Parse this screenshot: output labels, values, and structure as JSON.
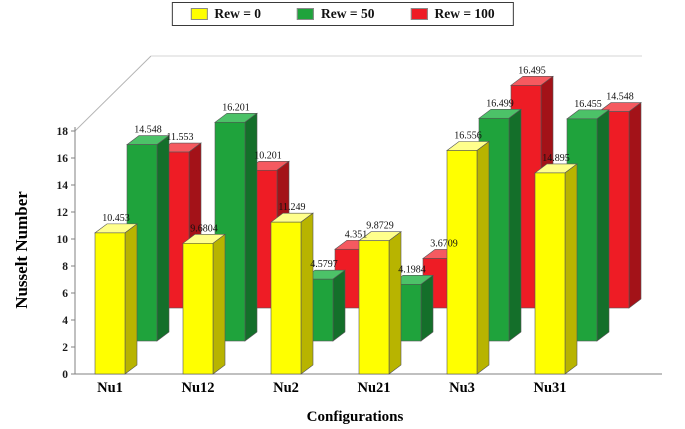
{
  "figure": {
    "ylabel": "Nusselt Number",
    "xlabel": "Configurations"
  },
  "legend": {
    "items": [
      {
        "label": "Rew = 0",
        "color": "#FFFF00"
      },
      {
        "label": "Rew = 50",
        "color": "#1FA33C"
      },
      {
        "label": "Rew = 100",
        "color": "#EE1C25"
      }
    ]
  },
  "chart_data": {
    "type": "bar",
    "projection": "3d",
    "title": "",
    "xlabel": "Configurations",
    "ylabel": "Nusselt Number",
    "legend_position": "top",
    "grid": false,
    "ylim": [
      0,
      18
    ],
    "yticks": [
      0,
      2,
      4,
      6,
      8,
      10,
      12,
      14,
      16,
      18
    ],
    "categories": [
      "Nu1",
      "Nu12",
      "Nu2",
      "Nu21",
      "Nu3",
      "Nu31"
    ],
    "series": [
      {
        "name": "Rew = 0",
        "color": "#FFFF00",
        "top_color": "#FFFF8C",
        "side_color": "#B8B400",
        "values": [
          10.453,
          9.6804,
          11.249,
          9.8729,
          16.556,
          14.895
        ],
        "labels": [
          "10.453",
          "9.6804",
          "11.249",
          "9.8729",
          "16.556",
          "14.895"
        ]
      },
      {
        "name": "Rew = 50",
        "color": "#1FA33C",
        "top_color": "#4CC268",
        "side_color": "#146F2A",
        "values": [
          14.548,
          16.201,
          4.5797,
          4.1984,
          16.499,
          16.455
        ],
        "labels": [
          "14.548",
          "16.201",
          "4.5797",
          "4.1984",
          "16.499",
          "16.455"
        ]
      },
      {
        "name": "Rew = 100",
        "color": "#EE1C25",
        "top_color": "#F55A60",
        "side_color": "#A31218",
        "values": [
          11.553,
          10.201,
          4.351,
          3.6709,
          16.495,
          14.548
        ],
        "labels": [
          "11.553",
          "10.201",
          "4.351",
          "3.6709",
          "16.495",
          "14.548"
        ]
      }
    ]
  }
}
